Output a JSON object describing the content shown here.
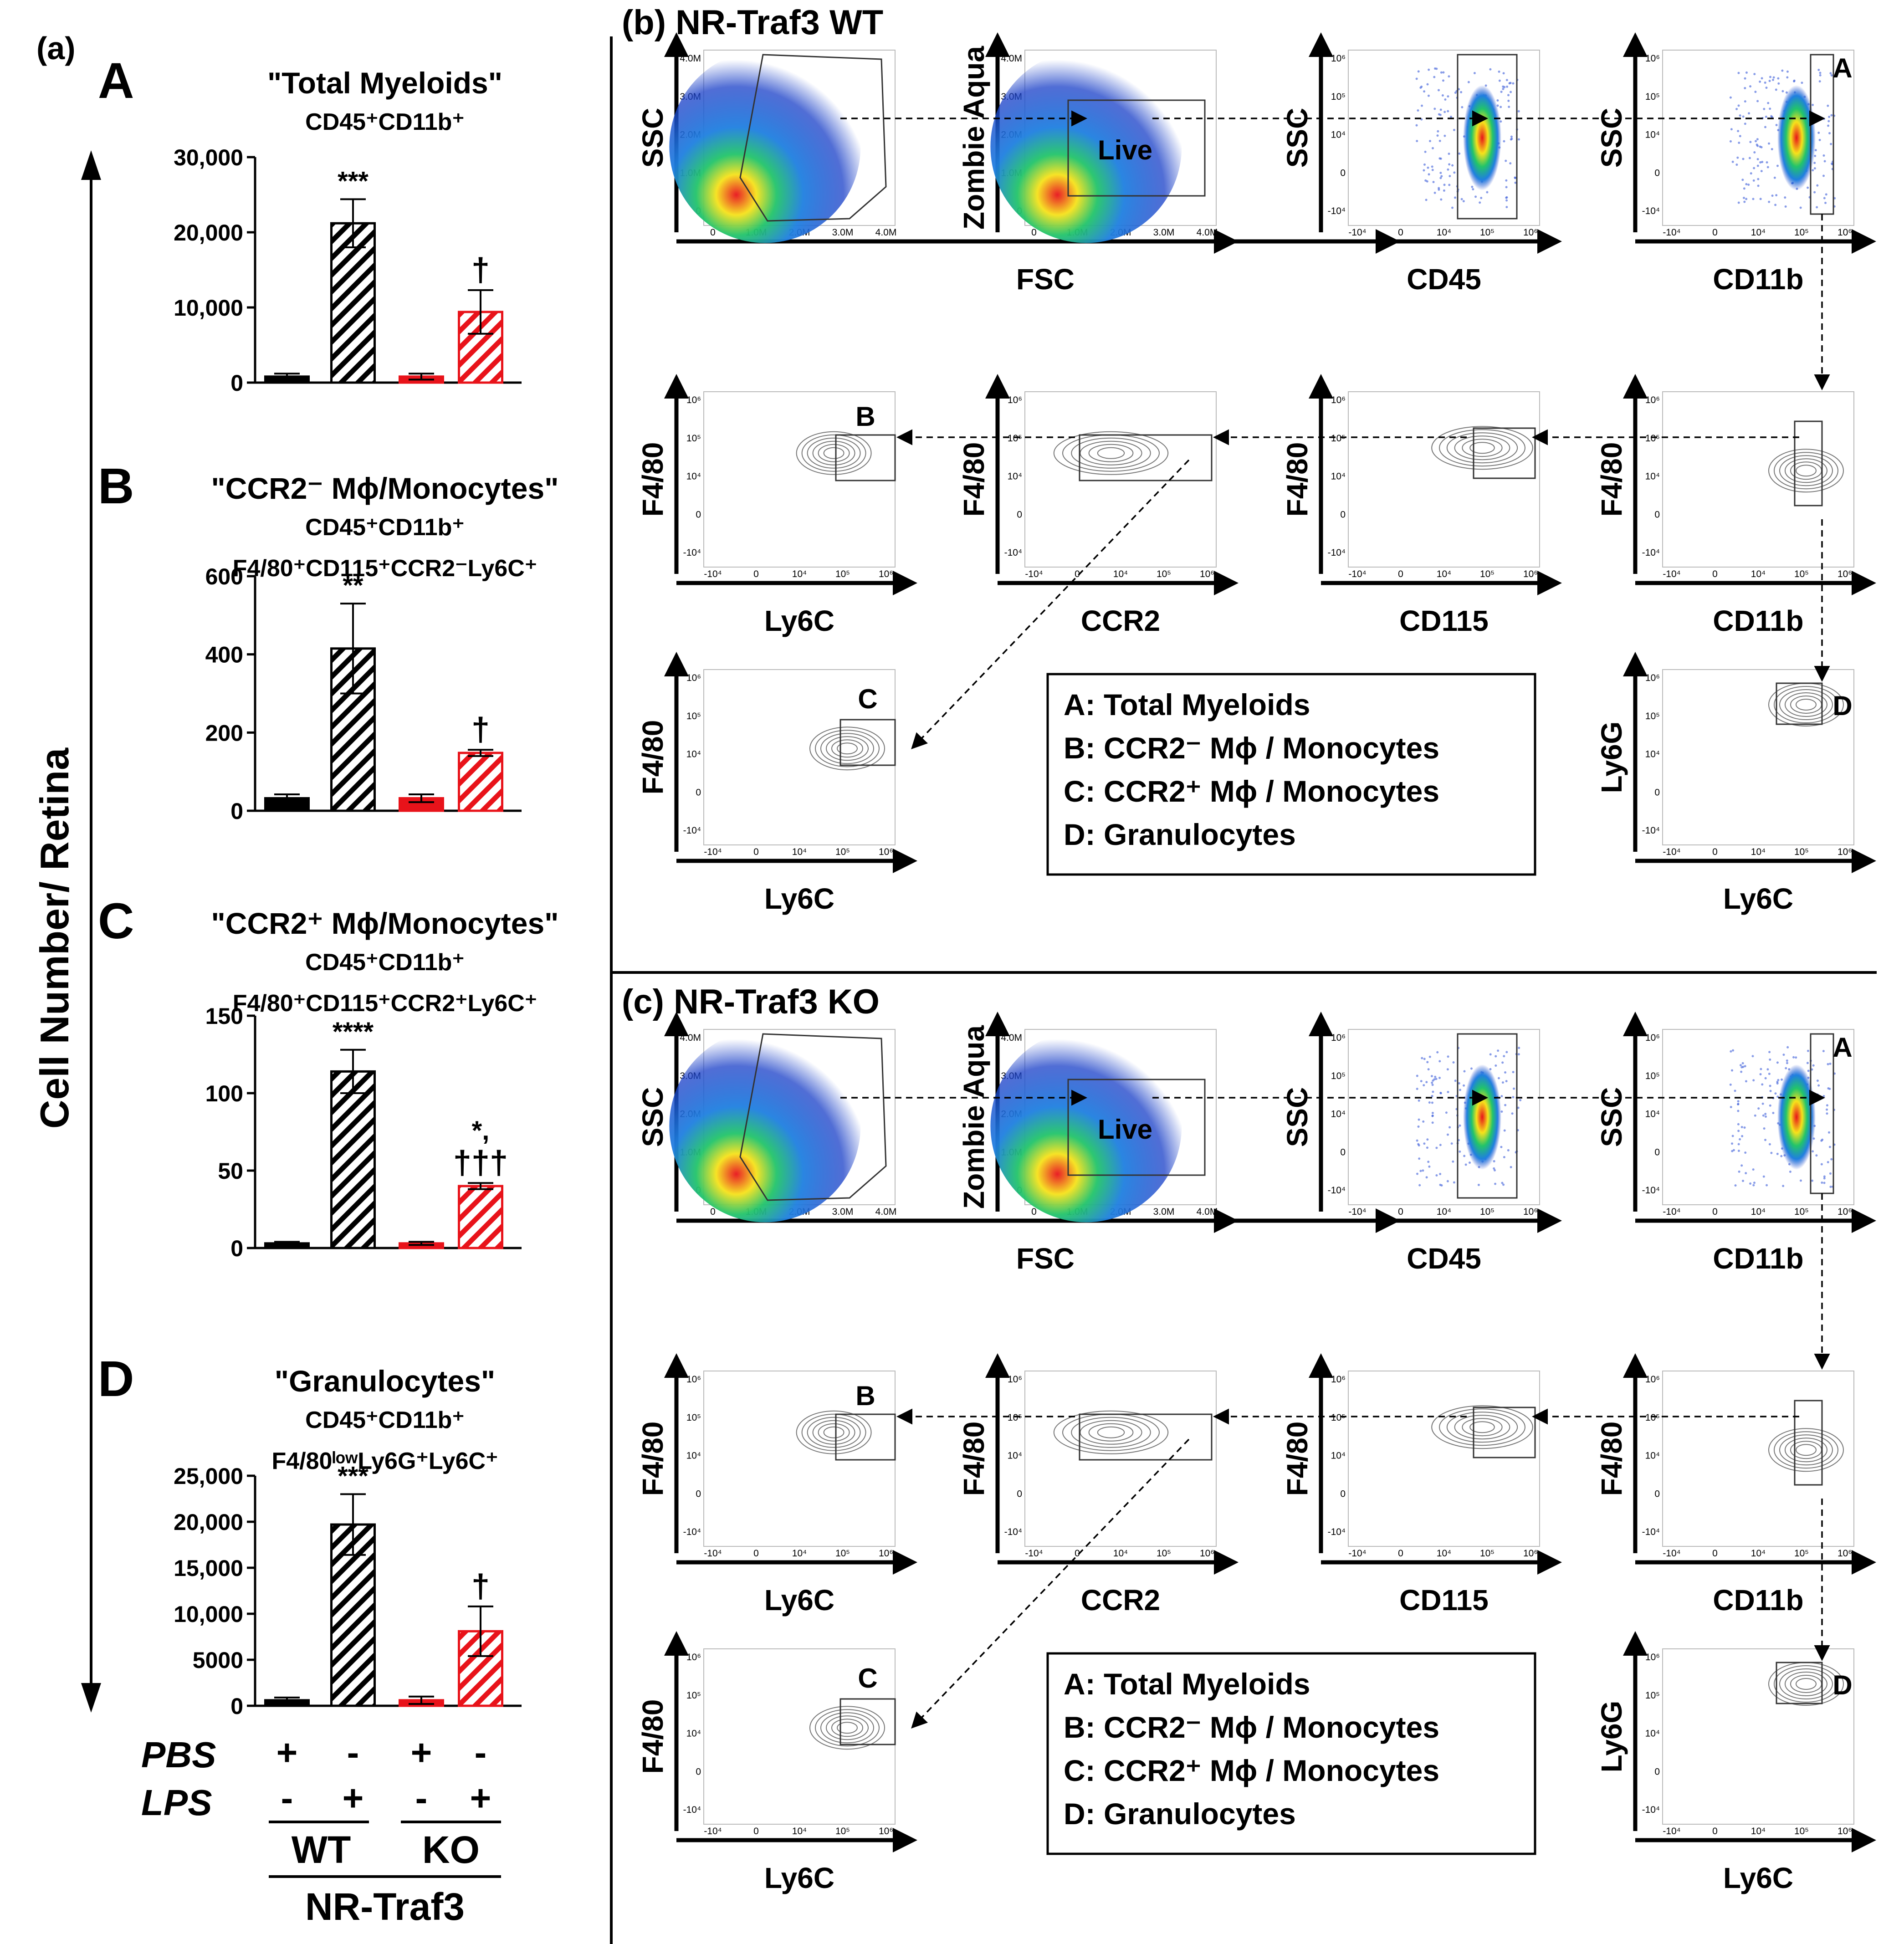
{
  "panel_a": {
    "label": "(a)",
    "y_axis_label": "Cell Number/ Retina",
    "condition_rows": [
      {
        "label": "PBS",
        "values": [
          "+",
          "-",
          "+",
          "-"
        ]
      },
      {
        "label": "LPS",
        "values": [
          "-",
          "+",
          "-",
          "+"
        ]
      }
    ],
    "genotypes": [
      "WT",
      "KO"
    ],
    "mouse_line": "NR-Traf3",
    "colors": {
      "wt": "#000000",
      "ko": "#e8131a"
    }
  },
  "chart_data": [
    {
      "type": "bar",
      "letter": "A",
      "title": "\"Total Myeloids\"",
      "subtitle_lines": [
        "CD45⁺CD11b⁺"
      ],
      "categories": [
        "WT PBS",
        "WT LPS",
        "KO PBS",
        "KO LPS"
      ],
      "values": [
        800,
        21200,
        800,
        9400
      ],
      "errors": [
        400,
        3200,
        400,
        2900
      ],
      "ylim": [
        0,
        30000
      ],
      "yticks": [
        "0",
        "10,000",
        "20,000",
        "30,000"
      ],
      "annotations": [
        "",
        "***",
        "",
        "†"
      ]
    },
    {
      "type": "bar",
      "letter": "B",
      "title": "\"CCR2⁻ Mϕ/Monocytes\"",
      "subtitle_lines": [
        "CD45⁺CD11b⁺",
        "F4/80⁺CD115⁺CCR2⁻Ly6C⁺"
      ],
      "categories": [
        "WT PBS",
        "WT LPS",
        "KO PBS",
        "KO LPS"
      ],
      "values": [
        32,
        415,
        32,
        148
      ],
      "errors": [
        10,
        115,
        10,
        8
      ],
      "ylim": [
        0,
        600
      ],
      "yticks": [
        "0",
        "200",
        "400",
        "600"
      ],
      "annotations": [
        "",
        "**",
        "",
        "†"
      ]
    },
    {
      "type": "bar",
      "letter": "C",
      "title": "\"CCR2⁺ Mϕ/Monocytes\"",
      "subtitle_lines": [
        "CD45⁺CD11b⁺",
        "F4/80⁺CD115⁺CCR2⁺Ly6C⁺"
      ],
      "categories": [
        "WT PBS",
        "WT LPS",
        "KO PBS",
        "KO LPS"
      ],
      "values": [
        3,
        114,
        3,
        40
      ],
      "errors": [
        1,
        14,
        1,
        2
      ],
      "ylim": [
        0,
        150
      ],
      "yticks": [
        "0",
        "50",
        "100",
        "150"
      ],
      "annotations": [
        "",
        "****",
        "",
        "*,\n†††"
      ]
    },
    {
      "type": "bar",
      "letter": "D",
      "title": "\"Granulocytes\"",
      "subtitle_lines": [
        "CD45⁺CD11b⁺",
        "F4/80ˡᵒʷLy6G⁺Ly6C⁺"
      ],
      "categories": [
        "WT PBS",
        "WT LPS",
        "KO PBS",
        "KO LPS"
      ],
      "values": [
        600,
        19700,
        600,
        8100
      ],
      "errors": [
        300,
        3300,
        400,
        2700
      ],
      "ylim": [
        0,
        25000
      ],
      "yticks": [
        "0",
        "5000",
        "10,000",
        "15,000",
        "20,000",
        "25,000"
      ],
      "annotations": [
        "",
        "***",
        "",
        "†"
      ]
    }
  ],
  "flow_panels": [
    {
      "title": "(b) NR-Traf3 WT",
      "plots": [
        {
          "ylabel": "SSC",
          "xlabel": "FSC",
          "gate": "",
          "style": "density"
        },
        {
          "ylabel": "Zombie Aqua",
          "xlabel": "",
          "gate": "Live",
          "style": "density"
        },
        {
          "ylabel": "SSC",
          "xlabel": "CD45",
          "gate": "",
          "style": "scatter"
        },
        {
          "ylabel": "SSC",
          "xlabel": "CD11b",
          "gate": "A",
          "style": "scatter"
        },
        {
          "ylabel": "F4/80",
          "xlabel": "Ly6C",
          "gate": "B",
          "style": "contour"
        },
        {
          "ylabel": "F4/80",
          "xlabel": "CCR2",
          "gate": "",
          "style": "contour"
        },
        {
          "ylabel": "F4/80",
          "xlabel": "CD115",
          "gate": "",
          "style": "contour"
        },
        {
          "ylabel": "F4/80",
          "xlabel": "CD11b",
          "gate": "",
          "style": "contour"
        },
        {
          "ylabel": "F4/80",
          "xlabel": "Ly6C",
          "gate": "C",
          "style": "contour"
        },
        {
          "ylabel": "Ly6G",
          "xlabel": "Ly6C",
          "gate": "D",
          "style": "contour"
        }
      ],
      "legend": [
        "A: Total Myeloids",
        "B: CCR2⁻ Mϕ / Monocytes",
        "C: CCR2⁺ Mϕ / Monocytes",
        "D: Granulocytes"
      ]
    },
    {
      "title": "(c) NR-Traf3 KO",
      "plots": [
        {
          "ylabel": "SSC",
          "xlabel": "FSC",
          "gate": "",
          "style": "density"
        },
        {
          "ylabel": "Zombie Aqua",
          "xlabel": "",
          "gate": "Live",
          "style": "density"
        },
        {
          "ylabel": "SSC",
          "xlabel": "CD45",
          "gate": "",
          "style": "scatter"
        },
        {
          "ylabel": "SSC",
          "xlabel": "CD11b",
          "gate": "A",
          "style": "scatter"
        },
        {
          "ylabel": "F4/80",
          "xlabel": "Ly6C",
          "gate": "B",
          "style": "contour"
        },
        {
          "ylabel": "F4/80",
          "xlabel": "CCR2",
          "gate": "",
          "style": "contour"
        },
        {
          "ylabel": "F4/80",
          "xlabel": "CD115",
          "gate": "",
          "style": "contour"
        },
        {
          "ylabel": "F4/80",
          "xlabel": "CD11b",
          "gate": "",
          "style": "contour"
        },
        {
          "ylabel": "F4/80",
          "xlabel": "Ly6C",
          "gate": "C",
          "style": "contour"
        },
        {
          "ylabel": "Ly6G",
          "xlabel": "Ly6C",
          "gate": "D",
          "style": "contour"
        }
      ],
      "legend": [
        "A: Total Myeloids",
        "B: CCR2⁻ Mϕ / Monocytes",
        "C: CCR2⁺ Mϕ / Monocytes",
        "D: Granulocytes"
      ]
    }
  ],
  "tick_labels": {
    "linear": [
      "0",
      "1.0M",
      "2.0M",
      "3.0M",
      "4.0M"
    ],
    "log_y": [
      "10⁶",
      "10⁵",
      "10⁴",
      "0",
      "-10⁴"
    ],
    "log_x": [
      "-10⁴",
      "0",
      "10⁴",
      "10⁵",
      "10⁶"
    ]
  }
}
